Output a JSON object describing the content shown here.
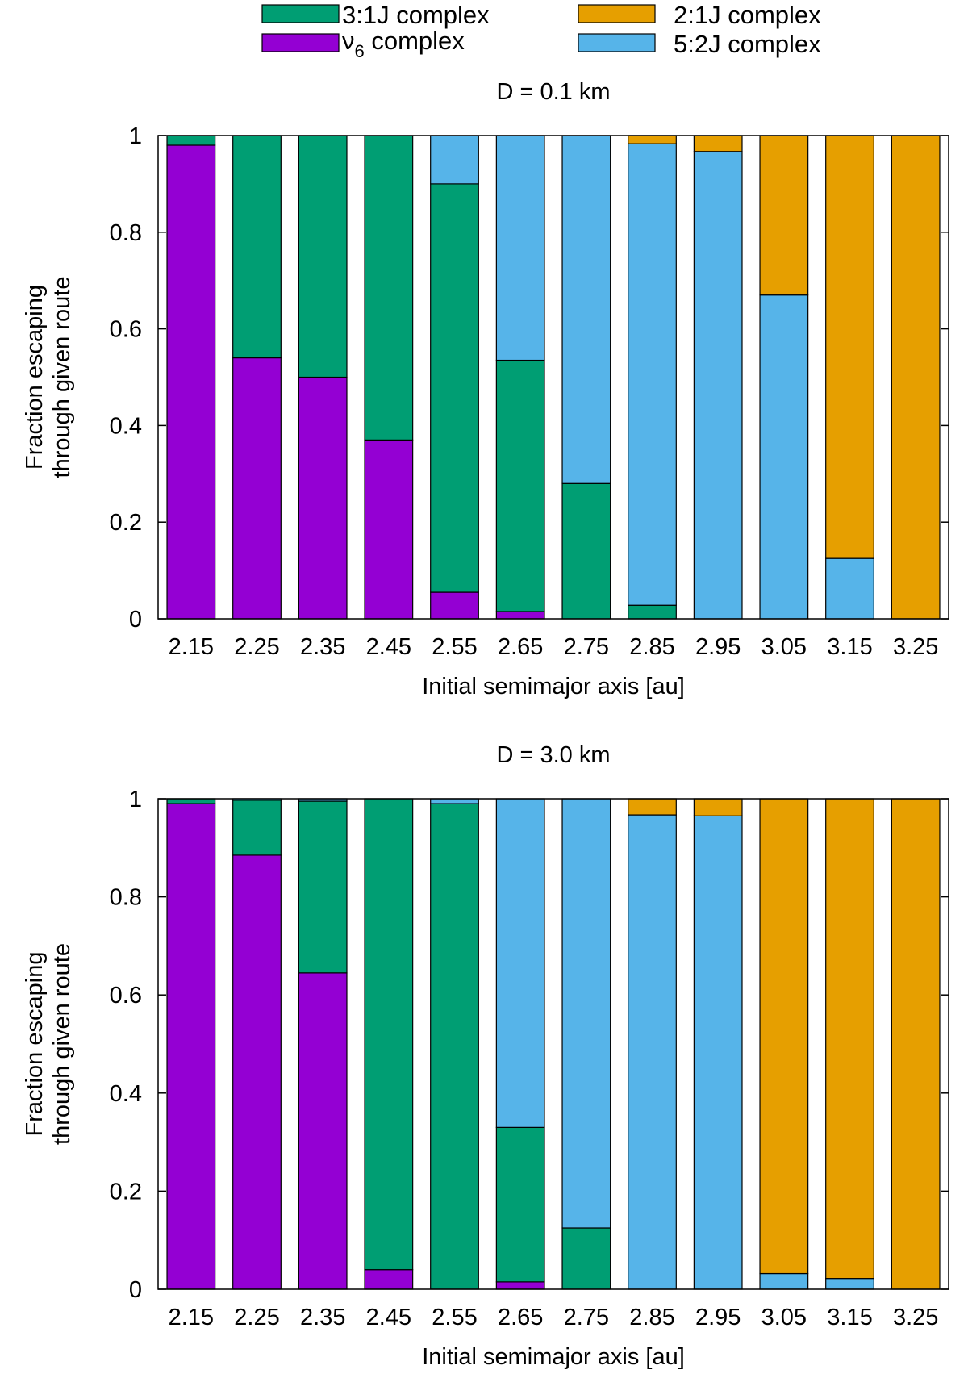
{
  "legend": {
    "entries": [
      {
        "key": "k31",
        "label": "3:1J complex",
        "color": "#009e73"
      },
      {
        "key": "k21",
        "label": "2:1J complex",
        "color": "#e69f00"
      },
      {
        "key": "nu6",
        "label": "ν",
        "subscript": "6",
        "label_suffix": " complex",
        "color": "#9400d3"
      },
      {
        "key": "k52",
        "label": "5:2J complex",
        "color": "#56b4e9"
      }
    ]
  },
  "chart_data": [
    {
      "type": "bar",
      "stacked": true,
      "title": "D = 0.1 km",
      "xlabel": "Initial semimajor axis [au]",
      "ylabel": [
        "Fraction escaping",
        "through given route"
      ],
      "ylim": [
        0,
        1
      ],
      "yticks": [
        "0",
        "0.2",
        "0.4",
        "0.6",
        "0.8",
        "1"
      ],
      "categories": [
        "2.15",
        "2.25",
        "2.35",
        "2.45",
        "2.55",
        "2.65",
        "2.75",
        "2.85",
        "2.95",
        "3.05",
        "3.15",
        "3.25"
      ],
      "series": [
        {
          "name": "ν6 complex",
          "key": "nu6",
          "values": [
            0.98,
            0.54,
            0.5,
            0.37,
            0.055,
            0.015,
            0.0,
            0.0,
            0.0,
            0.0,
            0.0,
            0.0
          ]
        },
        {
          "name": "3:1J complex",
          "key": "k31",
          "values": [
            0.02,
            0.46,
            0.5,
            0.63,
            0.845,
            0.52,
            0.28,
            0.028,
            0.0,
            0.0,
            0.0,
            0.0
          ]
        },
        {
          "name": "5:2J complex",
          "key": "k52",
          "values": [
            0.0,
            0.0,
            0.0,
            0.0,
            0.1,
            0.465,
            0.72,
            0.955,
            0.967,
            0.67,
            0.125,
            0.0
          ]
        },
        {
          "name": "2:1J complex",
          "key": "k21",
          "values": [
            0.0,
            0.0,
            0.0,
            0.0,
            0.0,
            0.0,
            0.0,
            0.017,
            0.033,
            0.33,
            0.875,
            1.0
          ]
        }
      ]
    },
    {
      "type": "bar",
      "stacked": true,
      "title": "D = 3.0 km",
      "xlabel": "Initial semimajor axis [au]",
      "ylabel": [
        "Fraction escaping",
        "through given route"
      ],
      "ylim": [
        0,
        1
      ],
      "yticks": [
        "0",
        "0.2",
        "0.4",
        "0.6",
        "0.8",
        "1"
      ],
      "categories": [
        "2.15",
        "2.25",
        "2.35",
        "2.45",
        "2.55",
        "2.65",
        "2.75",
        "2.85",
        "2.95",
        "3.05",
        "3.15",
        "3.25"
      ],
      "series": [
        {
          "name": "ν6 complex",
          "key": "nu6",
          "values": [
            0.99,
            0.885,
            0.645,
            0.04,
            0.0,
            0.015,
            0.0,
            0.0,
            0.0,
            0.0,
            0.0,
            0.0
          ]
        },
        {
          "name": "3:1J complex",
          "key": "k31",
          "values": [
            0.01,
            0.112,
            0.35,
            0.96,
            0.99,
            0.315,
            0.125,
            0.0,
            0.0,
            0.0,
            0.0,
            0.0
          ]
        },
        {
          "name": "5:2J complex",
          "key": "k52",
          "values": [
            0.0,
            0.003,
            0.005,
            0.0,
            0.01,
            0.67,
            0.875,
            0.967,
            0.965,
            0.032,
            0.022,
            0.0
          ]
        },
        {
          "name": "2:1J complex",
          "key": "k21",
          "values": [
            0.0,
            0.0,
            0.0,
            0.0,
            0.0,
            0.0,
            0.0,
            0.033,
            0.035,
            0.968,
            0.978,
            1.0
          ]
        }
      ]
    }
  ]
}
